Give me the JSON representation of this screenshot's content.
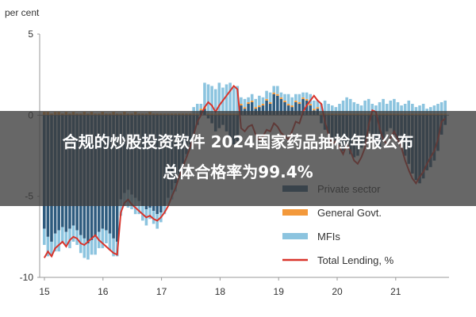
{
  "chart_data": {
    "type": "bar",
    "ylabel": "per cent",
    "ylim": [
      -10,
      5
    ],
    "yticks": [
      5,
      0,
      -5,
      -10
    ],
    "x_tick_labels": [
      "15",
      "16",
      "17",
      "18",
      "19",
      "20",
      "21"
    ],
    "colors": {
      "Private sector": "#2e5b7e",
      "General Govt.": "#f3993b",
      "MFIs": "#8cc4df",
      "Total Lending, %": "#d9342b"
    },
    "legend_entries": [
      "Private sector",
      "General Govt.",
      "MFIs",
      "Total Lending, %"
    ],
    "series": [
      {
        "name": "Private sector",
        "values": [
          -7.0,
          -7.5,
          -7.8,
          -7.3,
          -7.1,
          -6.9,
          -7.2,
          -7.0,
          -6.8,
          -7.1,
          -7.4,
          -7.6,
          -7.9,
          -7.7,
          -7.5,
          -7.2,
          -7.0,
          -7.1,
          -7.3,
          -7.6,
          -7.8,
          -5.2,
          -4.8,
          -4.6,
          -4.9,
          -5.1,
          -5.3,
          -5.6,
          -5.8,
          -5.7,
          -5.9,
          -6.1,
          -6.0,
          -5.6,
          -5.1,
          -4.6,
          -4.2,
          -3.6,
          -3.0,
          -2.4,
          -1.8,
          -1.2,
          -0.6,
          0.3,
          0.4,
          -0.2,
          -0.5,
          -1.0,
          -0.8,
          -0.6,
          -1.0,
          -1.4,
          -1.8,
          -1.6,
          0.6,
          0.4,
          0.7,
          0.8,
          0.4,
          0.5,
          0.6,
          0.9,
          0.7,
          1.3,
          1.2,
          1.0,
          0.8,
          0.6,
          0.5,
          0.8,
          0.7,
          1.0,
          0.9,
          0.6,
          0.3,
          0.4,
          -0.5,
          -0.9,
          -1.2,
          -1.5,
          -1.6,
          -1.8,
          -2.2,
          -2.0,
          -2.4,
          -2.6,
          -2.5,
          -2.0,
          -1.7,
          -1.0,
          -1.2,
          -1.8,
          -2.0,
          -1.6,
          -1.0,
          -0.8,
          -1.2,
          -1.5,
          -1.8,
          -2.5,
          -3.0,
          -3.6,
          -4.0,
          -4.2,
          -3.9,
          -3.4,
          -3.2,
          -2.8,
          -2.2,
          -1.2,
          -0.6
        ],
        "values_shown_above_zero": [
          0.3,
          0.4,
          0.6,
          0.4,
          0.7,
          0.8,
          0.4,
          0.5,
          0.6,
          0.9,
          0.7,
          1.3,
          1.2,
          1.0,
          0.8,
          0.6,
          0.5,
          0.8,
          0.7,
          1.0,
          0.9,
          0.6,
          0.3,
          0.4
        ]
      },
      {
        "name": "General Govt.",
        "values": [
          0.2,
          0.2,
          0.1,
          0.2,
          0.2,
          0.1,
          0.2,
          0.1,
          0.2,
          0.1,
          0.1,
          0.2,
          0.1,
          0.2,
          0.1,
          0.1,
          0.2,
          0.1,
          0.1,
          0.2,
          0.1,
          0.1,
          0.2,
          0.1,
          0.1,
          0.2,
          0.1,
          0.1,
          0.1,
          0.2,
          0.1,
          0.1,
          0.1,
          0.1,
          0.1,
          0.1,
          0.1,
          0.1,
          0.1,
          0.1,
          0.1,
          0.1,
          0.1,
          0.1,
          0.1,
          0.1,
          0.1,
          0.1,
          0.1,
          0.1,
          0.1,
          0.1,
          0.1,
          0.1,
          0.1,
          0.1,
          0.1,
          0.1,
          0.1,
          0.1,
          0.1,
          0.1,
          0.1,
          0.1,
          0.1,
          0.1,
          0.1,
          0.1,
          0.1,
          0.1,
          0.1,
          0.1,
          0.1,
          0.1,
          0.1,
          0.1,
          0.1,
          0.1,
          0.1,
          0.1,
          0.1,
          0.1,
          0.1,
          0.1,
          0.1,
          0.1,
          0.1,
          0.1,
          0.1,
          0.1,
          0.1,
          0.1,
          0.1,
          0.1,
          0.1,
          0.1,
          0.1,
          0.1,
          0.1,
          0.1,
          0.1,
          0.1,
          0.1,
          0.1,
          0.1,
          0.1,
          0.1,
          0.1,
          0.1,
          0.1,
          0.1
        ]
      },
      {
        "name": "MFIs",
        "values": [
          -1.0,
          -1.2,
          -0.9,
          -1.1,
          -1.3,
          -1.0,
          -0.8,
          -1.2,
          -1.0,
          -0.9,
          -1.1,
          -1.2,
          -1.0,
          -0.9,
          -1.1,
          -1.0,
          -1.2,
          -0.8,
          -1.0,
          -1.1,
          -0.9,
          -1.0,
          -0.8,
          -1.1,
          -0.9,
          -1.0,
          -0.8,
          -0.9,
          -1.0,
          -0.7,
          -0.8,
          -0.9,
          -0.6,
          -0.5,
          -0.4,
          -0.6,
          -0.5,
          -0.3,
          -0.4,
          -0.2,
          -0.3,
          0.4,
          0.6,
          0.3,
          1.5,
          1.8,
          1.7,
          1.5,
          1.9,
          1.6,
          1.8,
          1.9,
          1.6,
          1.7,
          0.4,
          0.5,
          0.3,
          0.4,
          0.5,
          0.6,
          0.4,
          0.5,
          0.6,
          0.4,
          0.5,
          0.3,
          0.4,
          0.6,
          0.5,
          0.4,
          0.5,
          0.3,
          0.4,
          0.6,
          0.5,
          0.4,
          0.6,
          0.8,
          0.6,
          0.5,
          0.4,
          0.6,
          0.8,
          1.0,
          0.9,
          0.7,
          0.6,
          0.5,
          0.8,
          0.9,
          0.6,
          0.5,
          0.7,
          0.9,
          0.6,
          0.8,
          0.9,
          0.7,
          0.5,
          0.6,
          0.8,
          0.6,
          0.4,
          0.5,
          0.6,
          0.3,
          0.4,
          0.5,
          0.6,
          0.7,
          0.8
        ]
      },
      {
        "name": "Total Lending, %",
        "values": [
          -8.8,
          -8.4,
          -8.7,
          -8.2,
          -8.0,
          -7.8,
          -8.1,
          -7.7,
          -7.5,
          -7.6,
          -7.9,
          -8.0,
          -7.8,
          -7.6,
          -7.4,
          -7.7,
          -7.9,
          -8.1,
          -8.3,
          -8.5,
          -8.6,
          -6.0,
          -5.4,
          -5.2,
          -5.5,
          -5.7,
          -5.9,
          -6.1,
          -6.3,
          -6.2,
          -6.4,
          -6.5,
          -6.3,
          -6.0,
          -5.6,
          -5.0,
          -4.5,
          -3.8,
          -3.2,
          -2.6,
          -2.0,
          -1.2,
          -0.4,
          0.0,
          0.5,
          0.8,
          0.6,
          0.2,
          0.6,
          0.9,
          1.2,
          1.5,
          1.8,
          1.6,
          -0.8,
          -1.0,
          -0.7,
          -0.6,
          -1.2,
          -1.5,
          -1.3,
          -0.9,
          -1.0,
          -0.5,
          -0.7,
          -1.1,
          -1.3,
          -1.5,
          -1.0,
          -0.4,
          -0.5,
          0.2,
          0.6,
          0.9,
          1.2,
          0.9,
          0.7,
          -0.4,
          -1.2,
          -1.8,
          -1.6,
          -2.0,
          -2.4,
          -1.8,
          -2.2,
          -2.8,
          -3.0,
          -2.6,
          -2.0,
          -0.6,
          0.3,
          0.2,
          -0.8,
          -1.5,
          -1.8,
          -1.4,
          -1.0,
          -1.5,
          -2.0,
          -2.8,
          -3.4,
          -3.9,
          -4.2,
          -3.8,
          -3.5,
          -3.0,
          -2.6,
          -2.2,
          -1.5,
          -0.4,
          -0.2
        ]
      }
    ]
  },
  "overlay": {
    "line1": "合规的炒股投资软件 2024国家药品抽检年报公布",
    "line2": "总体合格率为99.4%"
  }
}
